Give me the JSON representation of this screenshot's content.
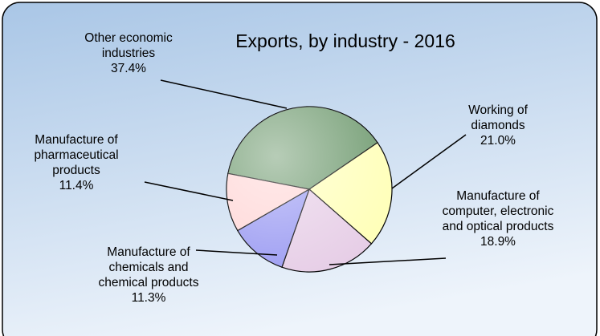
{
  "chart_data": {
    "type": "pie",
    "title": "Exports, by industry - 2016",
    "categories": [
      "Other economic industries",
      "Working of diamonds",
      "Manufacture of computer, electronic and optical products",
      "Manufacture of chemicals and chemical products",
      "Manufacture of pharmaceutical products"
    ],
    "values": [
      37.4,
      21.0,
      18.9,
      11.3,
      11.4
    ],
    "value_labels": [
      "37.4%",
      "21.0%",
      "18.9%",
      "11.3%",
      "11.4%"
    ],
    "colors": [
      "#6f9a6f",
      "#ffffb8",
      "#e6cde6",
      "#9a9af2",
      "#ffd6d6"
    ]
  }
}
